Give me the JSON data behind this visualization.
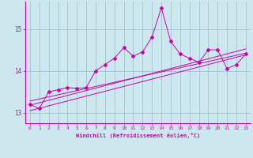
{
  "xlabel": "Windchill (Refroidissement éolien,°C)",
  "bg_color": "#cce8ee",
  "line_color": "#cc00aa",
  "grid_color": "#99bbcc",
  "xlim": [
    -0.5,
    23.5
  ],
  "ylim": [
    12.75,
    15.65
  ],
  "xticks": [
    0,
    1,
    2,
    3,
    4,
    5,
    6,
    7,
    8,
    9,
    10,
    11,
    12,
    13,
    14,
    15,
    16,
    17,
    18,
    19,
    20,
    21,
    22,
    23
  ],
  "yticks": [
    13,
    14,
    15
  ],
  "series": [
    [
      0,
      13.2
    ],
    [
      1,
      13.1
    ],
    [
      2,
      13.5
    ],
    [
      3,
      13.55
    ],
    [
      4,
      13.6
    ],
    [
      5,
      13.58
    ],
    [
      6,
      13.6
    ],
    [
      7,
      14.0
    ],
    [
      8,
      14.15
    ],
    [
      9,
      14.3
    ],
    [
      10,
      14.55
    ],
    [
      11,
      14.35
    ],
    [
      12,
      14.45
    ],
    [
      13,
      14.8
    ],
    [
      14,
      15.5
    ],
    [
      15,
      14.7
    ],
    [
      16,
      14.4
    ],
    [
      17,
      14.3
    ],
    [
      18,
      14.2
    ],
    [
      19,
      14.5
    ],
    [
      20,
      14.5
    ],
    [
      21,
      14.05
    ],
    [
      22,
      14.15
    ],
    [
      23,
      14.4
    ]
  ],
  "fit_lines": [
    [
      [
        0,
        23
      ],
      [
        13.05,
        14.38
      ]
    ],
    [
      [
        0,
        23
      ],
      [
        13.18,
        14.52
      ]
    ],
    [
      [
        0,
        23
      ],
      [
        13.28,
        14.42
      ]
    ]
  ]
}
